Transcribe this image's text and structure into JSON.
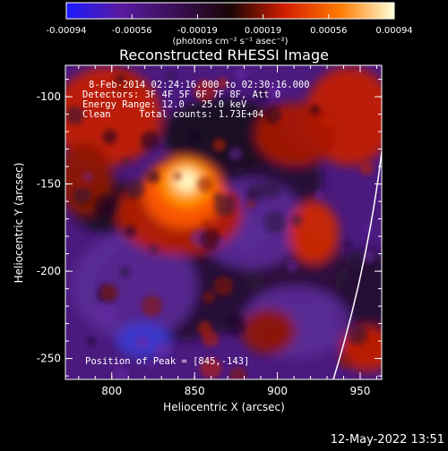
{
  "colorbar": {
    "tick_labels": [
      "-0.00094",
      "-0.00056",
      "-0.00019",
      "0.00019",
      "0.00056",
      "0.00094"
    ],
    "units": "(photons cm⁻² s⁻¹ asec⁻²)",
    "colors": [
      "#1a1aff",
      "#5a1aa0",
      "#3a0f55",
      "#1a0505",
      "#d21e00",
      "#ff7a00",
      "#ffffd8"
    ]
  },
  "image": {
    "title": "Reconstructed RHESSI Image",
    "info_lines": [
      "8-Feb-2014 02:24:16.000 to 02:30:16.000",
      "Detectors: 3F 4F 5F 6F 7F 8F, Att 0",
      "Energy Range: 12.0 - 25.0 keV",
      "Clean     Total counts: 1.73E+04"
    ],
    "peak_label": "Position of Peak = [845,-143]",
    "peak": [
      845,
      -143
    ],
    "x_range": [
      772,
      963
    ],
    "y_range": [
      -262,
      -82
    ]
  },
  "axes": {
    "x_label": "Heliocentric X (arcsec)",
    "y_label": "Heliocentric Y (arcsec)",
    "x_ticks": [
      "800",
      "850",
      "900",
      "950"
    ],
    "y_ticks": [
      "-100",
      "-150",
      "-200",
      "-250"
    ],
    "x_tick_values": [
      800,
      850,
      900,
      950
    ],
    "y_tick_values": [
      -100,
      -150,
      -200,
      -250
    ]
  },
  "footer": {
    "timestamp": "12-May-2022 13:51"
  }
}
